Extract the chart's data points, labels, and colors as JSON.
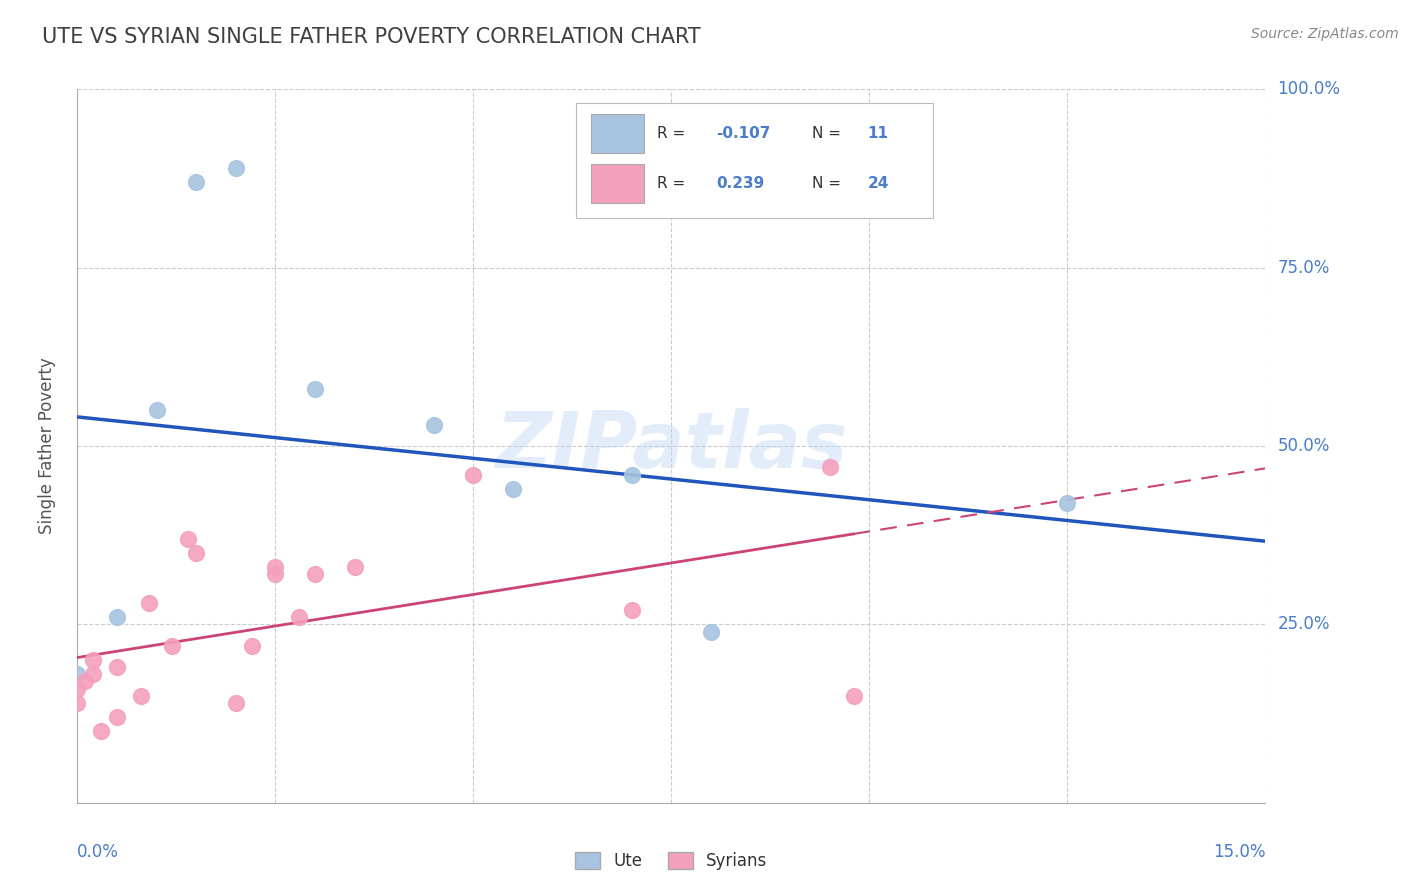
{
  "title": "UTE VS SYRIAN SINGLE FATHER POVERTY CORRELATION CHART",
  "source": "Source: ZipAtlas.com",
  "ylabel": "Single Father Poverty",
  "watermark": "ZIPatlas",
  "ute_R": -0.107,
  "ute_N": 11,
  "syrian_R": 0.239,
  "syrian_N": 24,
  "ute_color": "#a8c4e0",
  "syrian_color": "#f4a0bc",
  "ute_line_color": "#2255bb",
  "syrian_line_color": "#cc4477",
  "ute_points_x": [
    0.0,
    0.5,
    1.0,
    1.5,
    2.0,
    3.0,
    4.5,
    5.5,
    7.0,
    8.0,
    12.5
  ],
  "ute_points_y": [
    18.0,
    26.0,
    55.0,
    87.0,
    89.0,
    58.0,
    53.0,
    44.0,
    46.0,
    24.0,
    42.0
  ],
  "syrian_points_x": [
    0.0,
    0.0,
    0.1,
    0.2,
    0.2,
    0.3,
    0.5,
    0.5,
    0.8,
    0.9,
    1.2,
    1.4,
    1.5,
    2.0,
    2.2,
    2.5,
    2.5,
    2.8,
    3.0,
    3.5,
    5.0,
    7.0,
    9.5,
    9.8
  ],
  "syrian_points_y": [
    14.0,
    16.0,
    17.0,
    18.0,
    20.0,
    10.0,
    12.0,
    19.0,
    15.0,
    28.0,
    22.0,
    37.0,
    35.0,
    14.0,
    22.0,
    32.0,
    33.0,
    26.0,
    32.0,
    33.0,
    46.0,
    27.0,
    47.0,
    15.0
  ],
  "xmin": 0.0,
  "xmax": 15.0,
  "ymin": 0.0,
  "ymax": 100.0,
  "grid_color": "#cccccc",
  "background_color": "#ffffff",
  "title_color": "#404040",
  "axis_label_color": "#4a7cc9",
  "right_ytick_vals": [
    25,
    50,
    75,
    100
  ],
  "right_ytick_labels": [
    "25.0%",
    "50.0%",
    "75.0%",
    "100.0%"
  ]
}
